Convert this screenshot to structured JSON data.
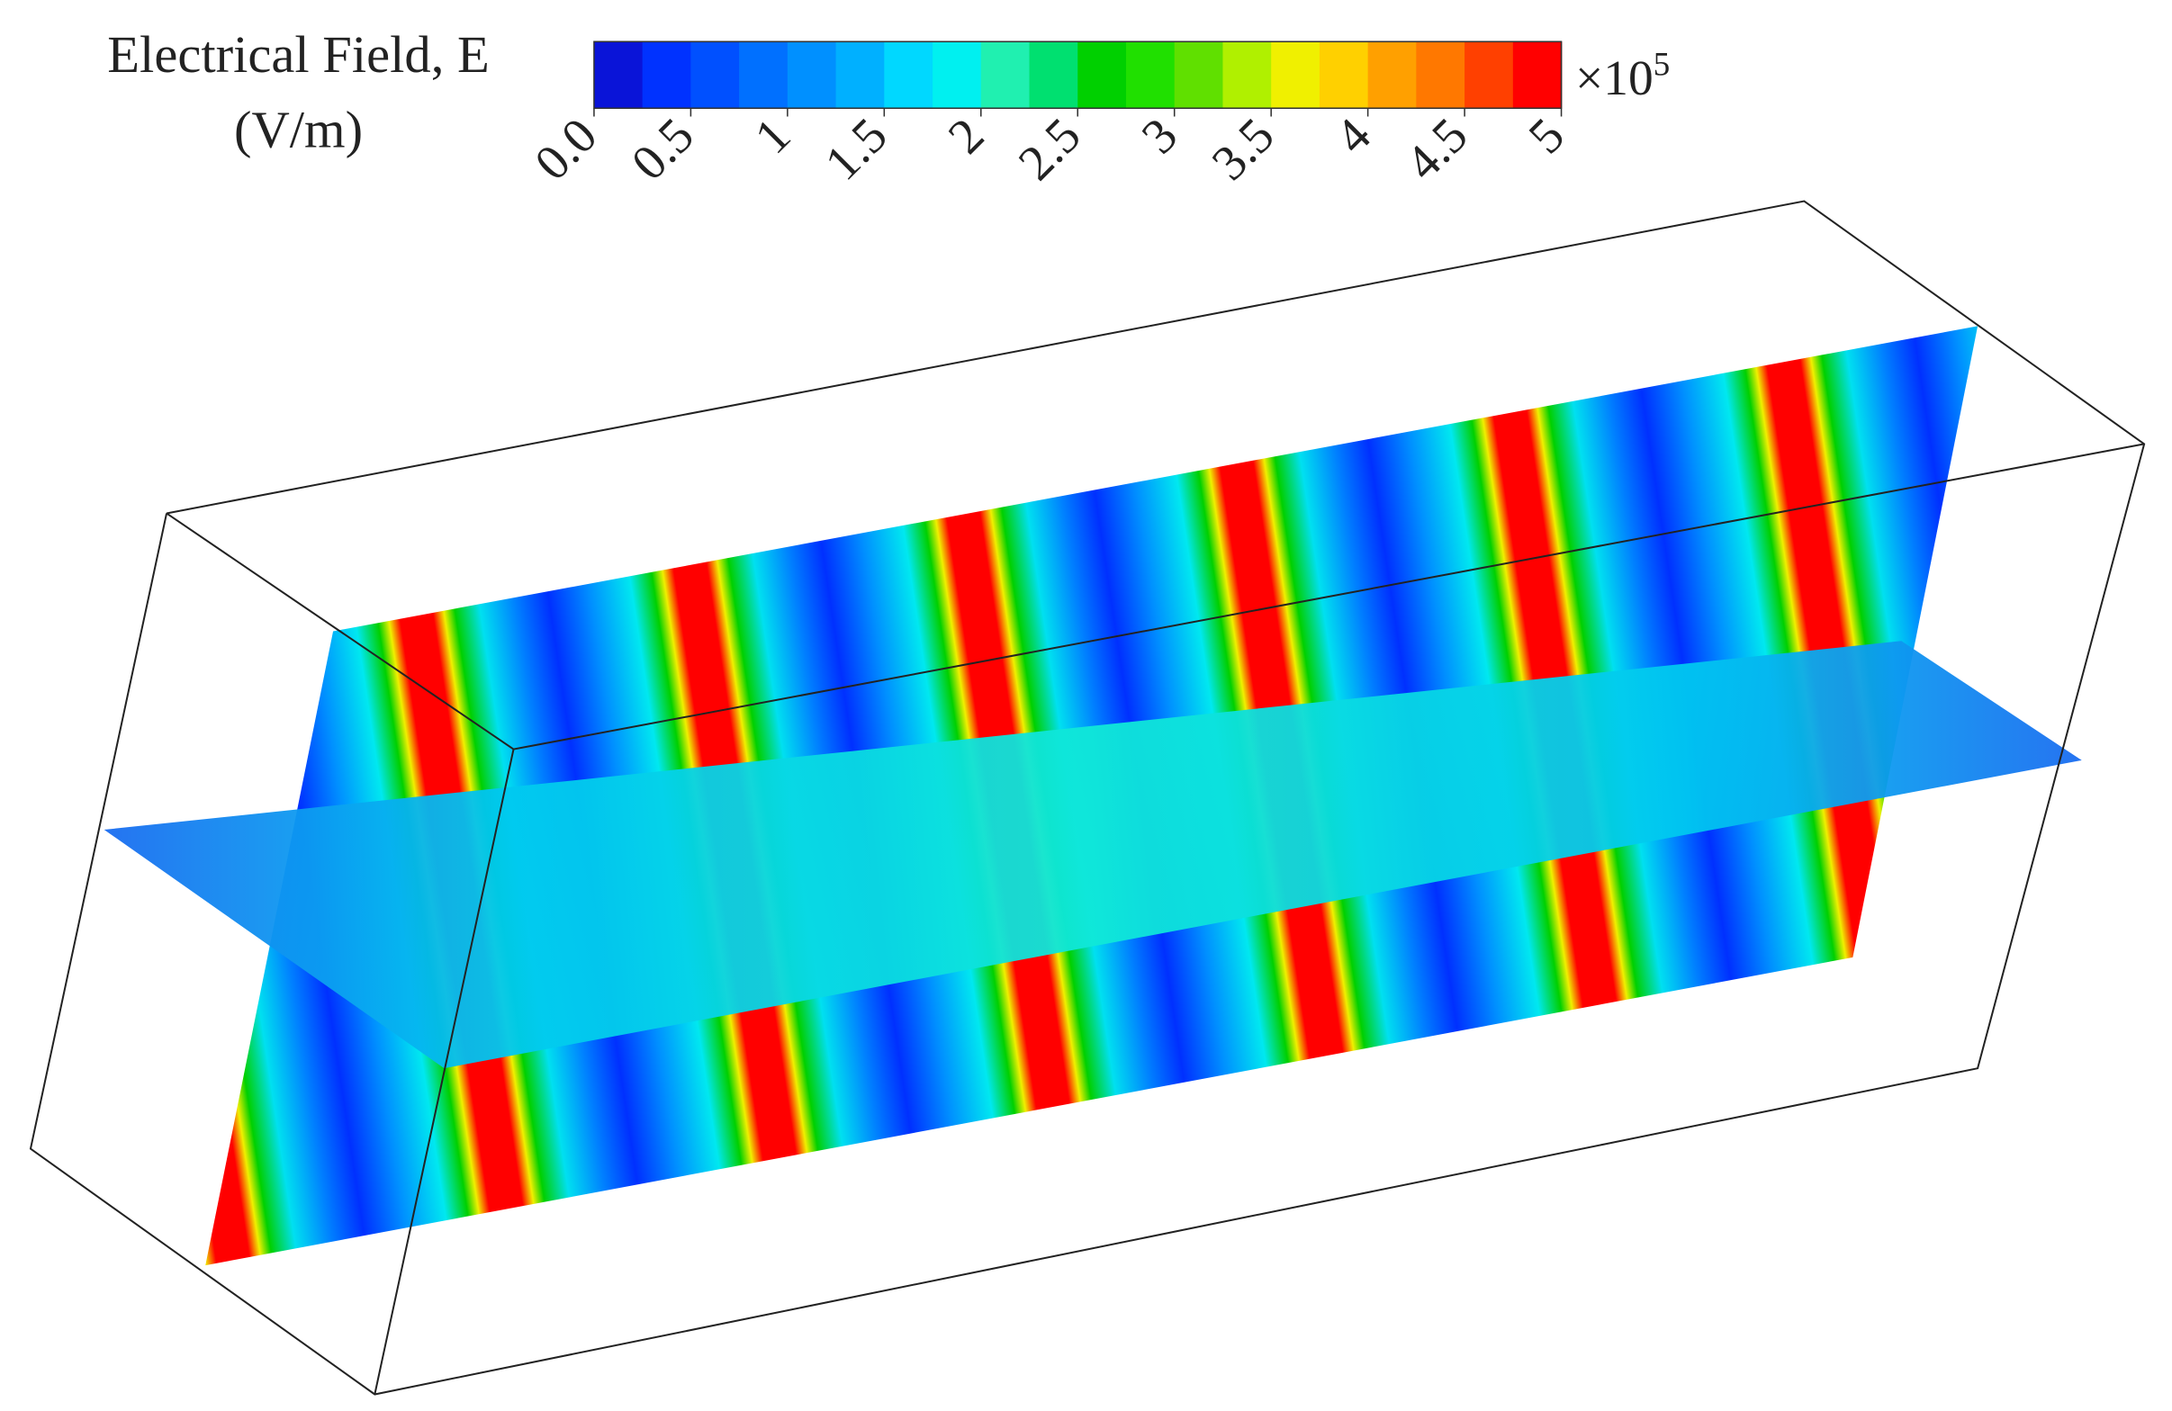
{
  "chart_data": {
    "type": "contour",
    "title": "Electrical Field, E",
    "unit_label": "(V/m)",
    "colorbar": {
      "multiplier": "×10",
      "exponent": "5",
      "lim": [
        0,
        5
      ],
      "ticks": [
        {
          "value": 0,
          "label": "0.0"
        },
        0.5,
        1,
        1.5,
        2,
        2.5,
        3,
        3.5,
        4,
        4.5,
        5
      ],
      "colors": [
        "#0a14d8",
        "#0032ff",
        "#0050ff",
        "#0070ff",
        "#0090ff",
        "#00b0ff",
        "#00d8ff",
        "#00f0f0",
        "#20f0b0",
        "#00e070",
        "#00d000",
        "#20e000",
        "#60e000",
        "#b0f000",
        "#f0f000",
        "#ffd000",
        "#ffa000",
        "#ff7800",
        "#ff4000",
        "#ff0000"
      ]
    }
  }
}
